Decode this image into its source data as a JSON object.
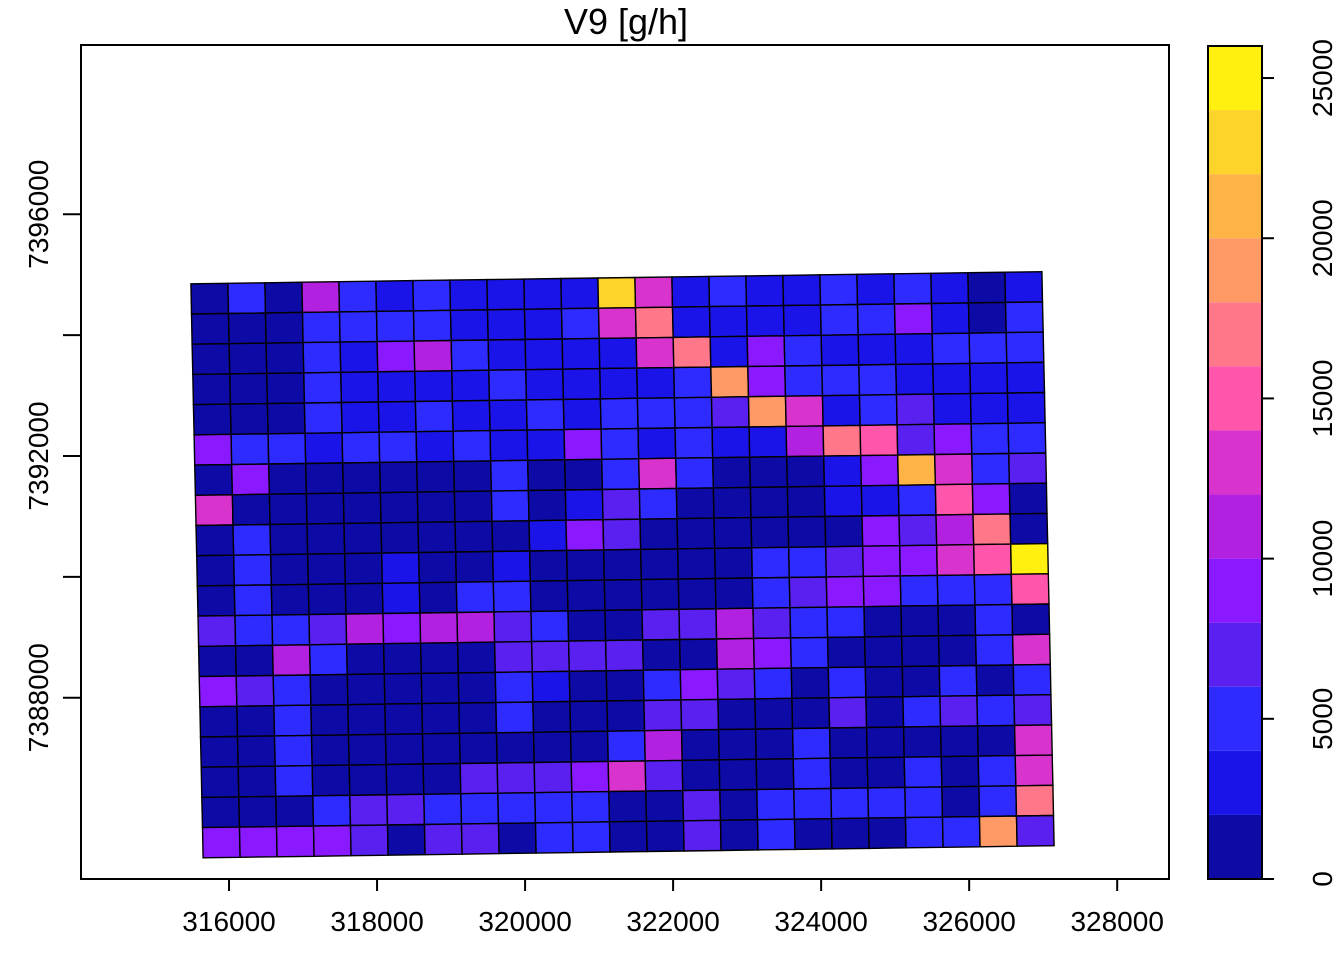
{
  "chart_data": {
    "type": "heatmap",
    "title": "V9 [g/h]",
    "xlabel": "",
    "ylabel": "",
    "xlim": [
      314000,
      328700
    ],
    "ylim": [
      7385000,
      7398800
    ],
    "x_ticks": [
      316000,
      318000,
      320000,
      322000,
      324000,
      326000,
      328000
    ],
    "x_tick_labels": [
      "316000",
      "318000",
      "320000",
      "322000",
      "324000",
      "326000",
      "328000"
    ],
    "y_ticks": [
      7388000,
      7392000,
      7396000
    ],
    "y_tick_labels": [
      "7388000",
      "7392000",
      "7396000"
    ],
    "y_minor_ticks": [
      7390000,
      7394000
    ],
    "grid": false,
    "legend": {
      "position": "right",
      "ticks": [
        0,
        5000,
        10000,
        15000,
        20000,
        25000
      ],
      "tick_labels": [
        "0",
        "5000",
        "10000",
        "15000",
        "20000",
        "25000"
      ],
      "range": [
        0,
        26000
      ],
      "breaks": [
        0,
        2000,
        4000,
        6000,
        8000,
        10000,
        12000,
        14000,
        16000,
        18000,
        20000,
        22000,
        24000,
        26000
      ],
      "colors": [
        "#0d0aa6",
        "#1a14e8",
        "#2d2bff",
        "#5a20f0",
        "#8a19ff",
        "#b220e0",
        "#d833cc",
        "#ff55aa",
        "#ff7788",
        "#ff9966",
        "#ffb445",
        "#ffd42a",
        "#fff010"
      ]
    },
    "grid_origin": {
      "x": 315650,
      "y": 7385350
    },
    "cell_size": 500,
    "rotation_deg": 1.0,
    "rows_top_to_bottom": [
      [
        0,
        2,
        0,
        5,
        2,
        1,
        2,
        1,
        1,
        1,
        1,
        11,
        6,
        1,
        2,
        1,
        1,
        2,
        1,
        2,
        1,
        0,
        1
      ],
      [
        0,
        0,
        0,
        2,
        2,
        2,
        2,
        1,
        1,
        1,
        2,
        6,
        8,
        1,
        1,
        1,
        1,
        2,
        2,
        4,
        1,
        0,
        2
      ],
      [
        0,
        0,
        0,
        2,
        1,
        4,
        5,
        2,
        1,
        1,
        1,
        1,
        6,
        8,
        1,
        4,
        2,
        1,
        1,
        1,
        2,
        2,
        2
      ],
      [
        0,
        0,
        0,
        2,
        1,
        1,
        1,
        1,
        2,
        1,
        1,
        1,
        1,
        2,
        9,
        4,
        2,
        2,
        2,
        1,
        1,
        1,
        1
      ],
      [
        0,
        0,
        0,
        2,
        1,
        1,
        2,
        1,
        1,
        2,
        1,
        2,
        2,
        2,
        3,
        9,
        6,
        1,
        2,
        3,
        1,
        1,
        1
      ],
      [
        4,
        2,
        2,
        1,
        2,
        2,
        1,
        2,
        1,
        1,
        4,
        2,
        1,
        2,
        1,
        1,
        5,
        8,
        7,
        3,
        4,
        2,
        2
      ],
      [
        0,
        4,
        0,
        0,
        0,
        0,
        0,
        0,
        2,
        0,
        0,
        2,
        6,
        2,
        0,
        0,
        0,
        1,
        4,
        10,
        6,
        2,
        3
      ],
      [
        6,
        0,
        0,
        0,
        0,
        0,
        0,
        0,
        2,
        0,
        1,
        3,
        2,
        0,
        0,
        0,
        0,
        1,
        1,
        2,
        7,
        4,
        0
      ],
      [
        0,
        2,
        0,
        0,
        0,
        0,
        0,
        0,
        0,
        1,
        4,
        3,
        0,
        0,
        0,
        0,
        0,
        0,
        4,
        3,
        5,
        8,
        0
      ],
      [
        0,
        2,
        0,
        0,
        0,
        1,
        0,
        0,
        1,
        0,
        0,
        0,
        0,
        0,
        0,
        2,
        2,
        3,
        4,
        4,
        6,
        7,
        12
      ],
      [
        0,
        2,
        0,
        0,
        0,
        1,
        0,
        2,
        2,
        0,
        0,
        0,
        0,
        0,
        0,
        2,
        3,
        4,
        4,
        2,
        2,
        2,
        7
      ],
      [
        3,
        2,
        2,
        3,
        5,
        4,
        5,
        5,
        3,
        2,
        0,
        0,
        3,
        3,
        5,
        3,
        2,
        2,
        0,
        0,
        0,
        2,
        0
      ],
      [
        0,
        0,
        5,
        2,
        0,
        0,
        0,
        0,
        3,
        3,
        3,
        3,
        0,
        0,
        5,
        4,
        2,
        0,
        0,
        0,
        0,
        2,
        6
      ],
      [
        4,
        3,
        2,
        0,
        0,
        0,
        0,
        0,
        2,
        1,
        0,
        0,
        2,
        4,
        3,
        2,
        0,
        2,
        0,
        0,
        2,
        0,
        2
      ],
      [
        0,
        0,
        2,
        0,
        0,
        0,
        0,
        0,
        2,
        0,
        0,
        0,
        3,
        3,
        0,
        0,
        0,
        3,
        0,
        2,
        3,
        2,
        3
      ],
      [
        0,
        0,
        2,
        0,
        0,
        0,
        0,
        0,
        0,
        0,
        0,
        2,
        5,
        0,
        0,
        0,
        2,
        0,
        0,
        0,
        0,
        0,
        6
      ],
      [
        0,
        0,
        2,
        0,
        0,
        0,
        0,
        3,
        3,
        3,
        4,
        6,
        3,
        0,
        0,
        0,
        2,
        0,
        0,
        2,
        0,
        2,
        6
      ],
      [
        0,
        0,
        0,
        2,
        3,
        3,
        2,
        2,
        2,
        2,
        2,
        0,
        0,
        3,
        0,
        2,
        2,
        2,
        2,
        2,
        0,
        2,
        8
      ],
      [
        4,
        4,
        4,
        4,
        3,
        0,
        3,
        3,
        0,
        2,
        2,
        0,
        0,
        3,
        0,
        2,
        0,
        0,
        0,
        2,
        2,
        9,
        3
      ]
    ]
  }
}
